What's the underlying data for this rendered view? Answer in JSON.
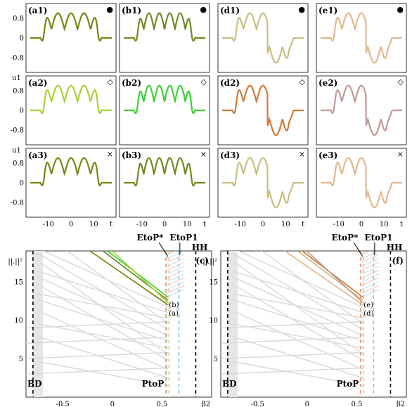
{
  "figure": {
    "small_panels": {
      "y_axis_label": "u1",
      "x_axis_label": "t",
      "x_ticks": [
        "-10",
        "0",
        "10"
      ],
      "y_ticks": [
        "0.8",
        "0",
        "-0.8"
      ],
      "columns": [
        {
          "key": "a",
          "rows": [
            {
              "label": "(a1)",
              "marker": "●",
              "color": "#7a8515",
              "lobes": 4,
              "mode": "pos"
            },
            {
              "label": "(a2)",
              "marker": "◇",
              "color": "#a8d23a",
              "lobes": 4,
              "mode": "pos"
            },
            {
              "label": "(a3)",
              "marker": "×",
              "color": "#7a8515",
              "lobes": 4,
              "mode": "pos"
            }
          ]
        },
        {
          "key": "b",
          "rows": [
            {
              "label": "(b1)",
              "marker": "●",
              "color": "#6f8a25",
              "lobes": 5,
              "mode": "pos"
            },
            {
              "label": "(b2)",
              "marker": "◇",
              "color": "#3fcf3a",
              "lobes": 5,
              "mode": "pos"
            },
            {
              "label": "(b3)",
              "marker": "×",
              "color": "#6f8a25",
              "lobes": 5,
              "mode": "pos"
            }
          ]
        },
        {
          "key": "d",
          "rows": [
            {
              "label": "(d1)",
              "marker": "●",
              "color": "#c9be80",
              "lobes": 4,
              "mode": "split"
            },
            {
              "label": "(d2)",
              "marker": "◇",
              "color": "#cf7a38",
              "lobes": 4,
              "mode": "split"
            },
            {
              "label": "(d3)",
              "marker": "×",
              "color": "#c9be80",
              "lobes": 4,
              "mode": "split"
            }
          ]
        },
        {
          "key": "e",
          "rows": [
            {
              "label": "(e1)",
              "marker": "●",
              "color": "#e2b88c",
              "lobes": 4,
              "mode": "split"
            },
            {
              "label": "(e2)",
              "marker": "◇",
              "color": "#c29898",
              "lobes": 4,
              "mode": "split"
            },
            {
              "label": "(e3)",
              "marker": "×",
              "color": "#e2b88c",
              "lobes": 4,
              "mode": "split"
            }
          ]
        }
      ]
    },
    "bifurcation": {
      "y_axis_label": "||.||²",
      "x_axis_label": "β2",
      "x_ticks": [
        "-0.5",
        "0",
        "0.5"
      ],
      "y_ticks": [
        "5",
        "10",
        "15"
      ],
      "annotations": {
        "bd": "BD",
        "ptop": "PtoP",
        "etop_star": "EtoP*",
        "etop_1": "EtoP1",
        "hh": "HH"
      },
      "panels": [
        {
          "label": "(c)",
          "branch_labels": [
            "(b)",
            "(a)"
          ],
          "branch_colors": [
            "#3fcf3a",
            "#6f8a25",
            "#7a8515",
            "#a8d23a"
          ]
        },
        {
          "label": "(f)",
          "branch_labels": [
            "(e)",
            "(d)"
          ],
          "branch_colors": [
            "#cf7a38",
            "#c9be80",
            "#e2b88c",
            "#c29898"
          ]
        }
      ]
    }
  },
  "colors": {
    "grey_branch": "#dadada",
    "bd_line": "#000000",
    "ptop_line": "#f08a60",
    "etop_star_line": "#a8e0a8",
    "etop_1_line": "#8fc4e6",
    "hh_line": "#000000"
  }
}
